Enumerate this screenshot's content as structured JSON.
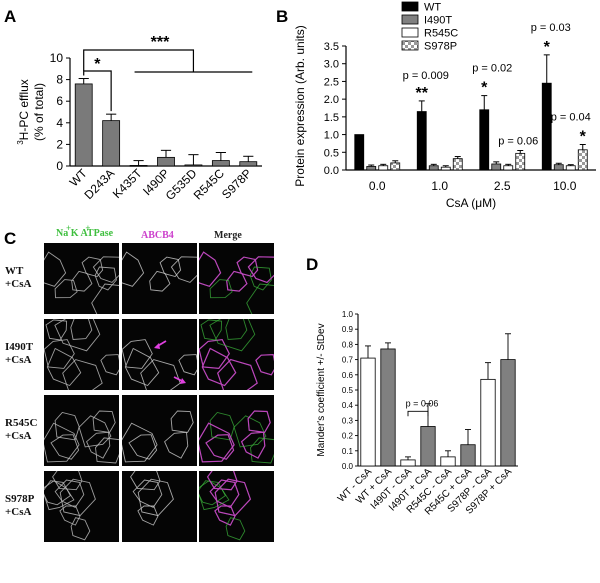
{
  "panels": {
    "a": {
      "letter": "A"
    },
    "b": {
      "letter": "B"
    },
    "c": {
      "letter": "C"
    },
    "d": {
      "letter": "D"
    }
  },
  "chart_data": [
    {
      "id": "A",
      "type": "bar",
      "ylabel_line1": "H-PC efflux",
      "ylabel_sup": "3",
      "ylabel_line2": "(% of total)",
      "ylim": [
        0,
        10
      ],
      "yticks": [
        "0",
        "2",
        "4",
        "6",
        "8",
        "10"
      ],
      "categories": [
        "WT",
        "D243A",
        "K435T",
        "I490P",
        "G535D",
        "R545C",
        "S978P"
      ],
      "values": [
        7.6,
        4.2,
        0.05,
        0.8,
        0.1,
        0.5,
        0.4
      ],
      "errors": [
        0.5,
        0.6,
        0.45,
        0.65,
        0.95,
        0.75,
        0.5
      ],
      "bar_color": "#7a7a7a",
      "annotations": {
        "single_star": "*",
        "triple_star": "***"
      }
    },
    {
      "id": "B",
      "type": "bar",
      "xlabel": "CsA (μM)",
      "ylabel": "Protein expression (Arb. units)",
      "ylim": [
        0,
        3.5
      ],
      "yticks": [
        "0.0",
        "0.5",
        "1.0",
        "1.5",
        "2.0",
        "2.5",
        "3.0",
        "3.5"
      ],
      "categories": [
        "0.0",
        "1.0",
        "2.5",
        "10.0"
      ],
      "series": [
        {
          "name": "WT",
          "values": [
            1.0,
            1.65,
            1.7,
            2.45
          ],
          "errors": [
            0,
            0.3,
            0.4,
            0.8
          ],
          "fill": "#000000"
        },
        {
          "name": "I490T",
          "values": [
            0.1,
            0.12,
            0.17,
            0.15
          ],
          "errors": [
            0.04,
            0.04,
            0.06,
            0.04
          ],
          "fill": "#808080"
        },
        {
          "name": "R545C",
          "values": [
            0.12,
            0.08,
            0.12,
            0.12
          ],
          "errors": [
            0.04,
            0.04,
            0.04,
            0.03
          ],
          "fill": "#ffffff"
        },
        {
          "name": "S978P",
          "values": [
            0.2,
            0.32,
            0.47,
            0.57
          ],
          "errors": [
            0.06,
            0.06,
            0.08,
            0.15
          ],
          "fill": "pattern"
        }
      ],
      "annotations": [
        {
          "group": 1,
          "p": "p = 0.009",
          "stars": "**"
        },
        {
          "group": 2,
          "p": "p = 0.02",
          "stars": "*"
        },
        {
          "group": 2,
          "p": "p = 0.06",
          "stars": ""
        },
        {
          "group": 3,
          "p": "p = 0.03",
          "stars": "*"
        },
        {
          "group": 3,
          "p": "p = 0.04",
          "stars": "*"
        }
      ]
    },
    {
      "id": "D",
      "type": "bar",
      "ylabel": "Mander's coefficient +/- StDev",
      "ylim": [
        0,
        1.0
      ],
      "yticks": [
        "0.0",
        "0.1",
        "0.2",
        "0.3",
        "0.4",
        "0.5",
        "0.6",
        "0.7",
        "0.8",
        "0.9",
        "1.0"
      ],
      "categories": [
        "WT - CsA",
        "WT + CsA",
        "I490T - CsA",
        "I490T + CsA",
        "R545C - CsA",
        "R545C + CsA",
        "S978P - CsA",
        "S978P + CsA"
      ],
      "values": [
        0.71,
        0.77,
        0.04,
        0.26,
        0.06,
        0.14,
        0.57,
        0.7
      ],
      "errors": [
        0.08,
        0.04,
        0.02,
        0.15,
        0.04,
        0.1,
        0.11,
        0.17
      ],
      "fills": [
        "#ffffff",
        "#808080",
        "#ffffff",
        "#808080",
        "#ffffff",
        "#808080",
        "#ffffff",
        "#808080"
      ],
      "annotation": "p = 0.06"
    }
  ],
  "micrograph": {
    "col_left_html": "Na<sup>+</sup>K<sup>+</sup>ATPase",
    "col_left_main": "Na K ATPase",
    "col_left_sup": "+ +",
    "col_mid": "ABCB4",
    "col_right": "Merge",
    "rows": [
      {
        "line1": "WT",
        "line2": "+CsA"
      },
      {
        "line1": "I490T",
        "line2": "+CsA"
      },
      {
        "line1": "R545C",
        "line2": "+CsA"
      },
      {
        "line1": "S978P",
        "line2": "+CsA"
      }
    ],
    "colors": {
      "na_k": "#3fbf3f",
      "abcb4": "#cc3fcc",
      "arrow": "#e040e0"
    }
  }
}
